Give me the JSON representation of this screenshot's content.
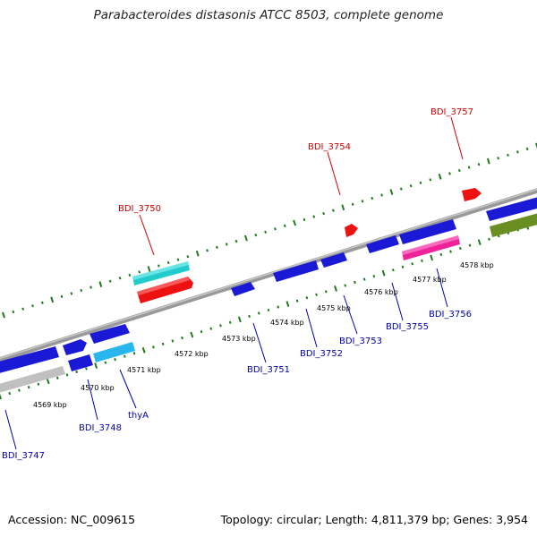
{
  "title": "Parabacteroides distasonis ATCC 8503, complete genome",
  "footer": {
    "accession": "Accession: NC_009615",
    "stats": "Topology: circular; Length: 4,811,379 bp; Genes: 3,954"
  },
  "colors": {
    "backbone": "#8a8a8a",
    "scale_ticks": "#1f7a1f",
    "forward_label": "#cc0000",
    "reverse_label": "#0000aa",
    "tick_label": "#000000"
  },
  "scale_labels": [
    "4569 kbp",
    "4570 kbp",
    "4571 kbp",
    "4572 kbp",
    "4573 kbp",
    "4574 kbp",
    "4575 kbp",
    "4576 kbp",
    "4577 kbp",
    "4578 kbp"
  ],
  "forward_gene_labels": [
    "BDI_3750",
    "BDI_3754",
    "BDI_3757"
  ],
  "reverse_gene_labels": [
    "BDI_3747",
    "BDI_3748",
    "thyA",
    "BDI_3751",
    "BDI_3752",
    "BDI_3753",
    "BDI_3755",
    "BDI_3756"
  ],
  "feature_colors": {
    "cds_blue": "#1a1ad6",
    "cds_light_blue": "#29b6ee",
    "cds_red": "#ee1111",
    "cds_cyan": "#22cccc",
    "cds_pink": "#ee2299",
    "cds_gray": "#c0c0c0",
    "cds_olive": "#6b8e23"
  }
}
